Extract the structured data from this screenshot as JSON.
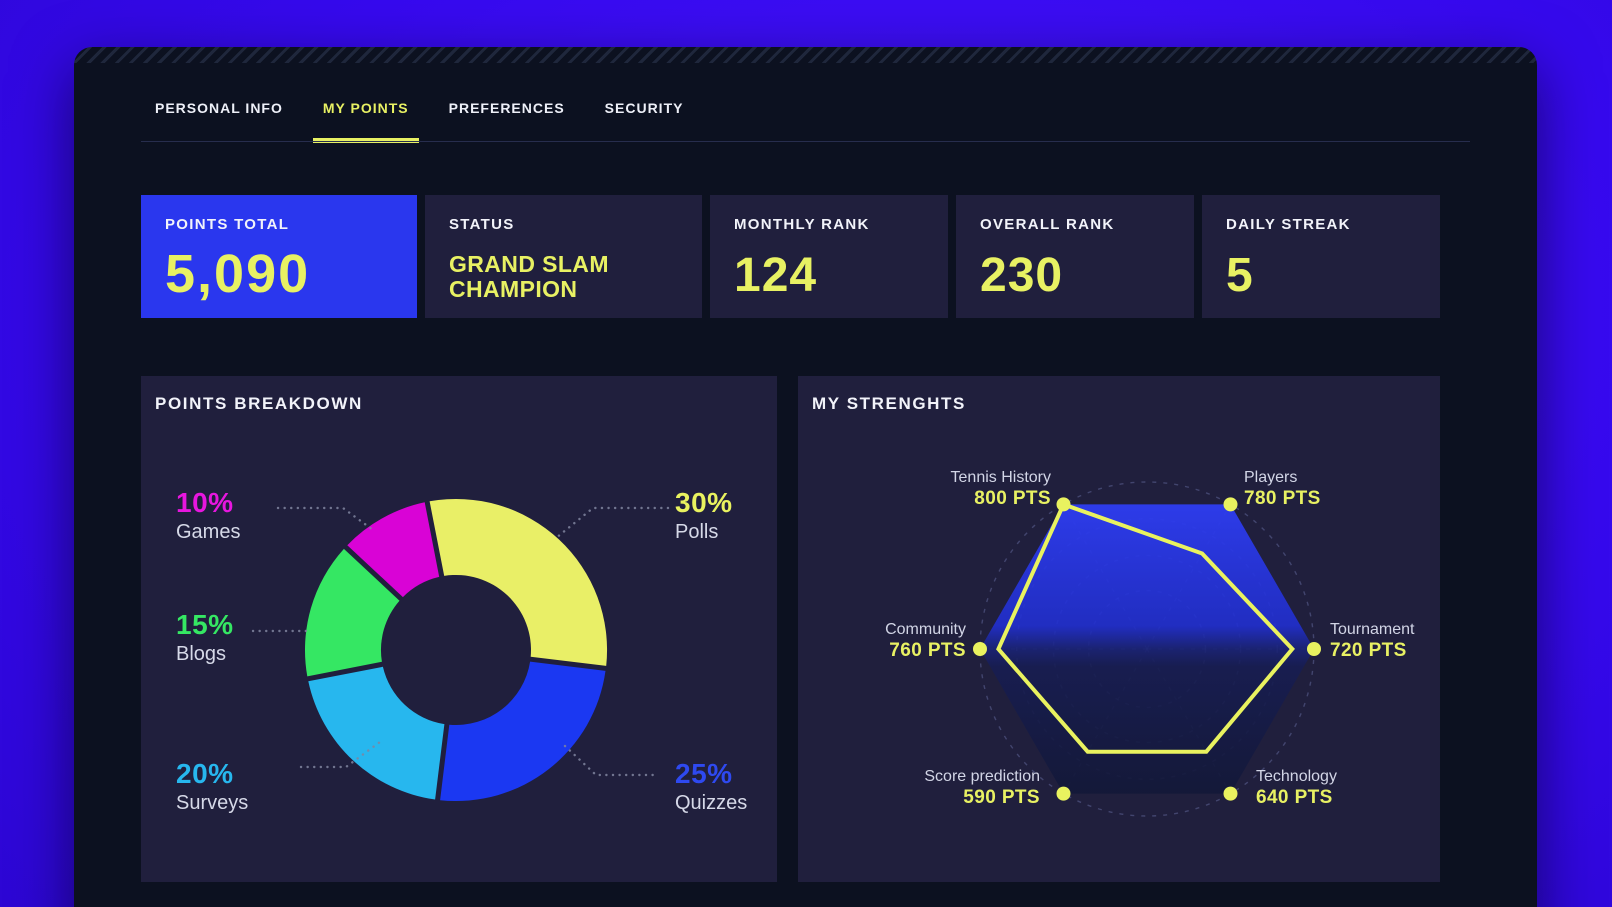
{
  "tabs": {
    "items": [
      {
        "label": "PERSONAL INFO",
        "active": false
      },
      {
        "label": "MY POINTS",
        "active": true
      },
      {
        "label": "PREFERENCES",
        "active": false
      },
      {
        "label": "SECURITY",
        "active": false
      }
    ]
  },
  "stats_cards": [
    {
      "label": "POINTS TOTAL",
      "value": "5,090",
      "highlighted": true
    },
    {
      "label": "STATUS",
      "value": "GRAND SLAM CHAMPION",
      "highlighted": false
    },
    {
      "label": "MONTHLY RANK",
      "value": "124",
      "highlighted": false
    },
    {
      "label": "OVERALL RANK",
      "value": "230",
      "highlighted": false
    },
    {
      "label": "DAILY STREAK",
      "value": "5",
      "highlighted": false
    }
  ],
  "panels": {
    "breakdown_title": "POINTS BREAKDOWN",
    "strengths_title": "MY STRENGHTS"
  },
  "chart_data": [
    {
      "type": "pie",
      "variant": "donut",
      "title": "POINTS BREAKDOWN",
      "categories": [
        "Polls",
        "Quizzes",
        "Surveys",
        "Blogs",
        "Games"
      ],
      "values": [
        30,
        25,
        20,
        15,
        10
      ],
      "unit": "%",
      "slice_colors": [
        "#e9ef67",
        "#1b38f2",
        "#27b7ee",
        "#35e763",
        "#d903d6"
      ],
      "start_angle_deg": -11,
      "direction": "clockwise",
      "legend_position": "callout-labels",
      "labels": [
        {
          "pct": "10%",
          "name": "Games",
          "color": "#e716df"
        },
        {
          "pct": "15%",
          "name": "Blogs",
          "color": "#35e763"
        },
        {
          "pct": "20%",
          "name": "Surveys",
          "color": "#27b7ee"
        },
        {
          "pct": "30%",
          "name": "Polls",
          "color": "#e9f25f"
        },
        {
          "pct": "25%",
          "name": "Quizzes",
          "color": "#2e49f0"
        }
      ]
    },
    {
      "type": "radar",
      "title": "MY STRENGHTS",
      "categories": [
        "Tennis History",
        "Players",
        "Tournament",
        "Technology",
        "Score prediction",
        "Community"
      ],
      "values": [
        800,
        780,
        720,
        640,
        590,
        760
      ],
      "unit": "PTS",
      "value_labels": [
        "800 PTS",
        "780 PTS",
        "720 PTS",
        "640 PTS",
        "590 PTS",
        "760 PTS"
      ],
      "axis_max": 800,
      "grid": {
        "rings": 4,
        "style": "dashed-circles-and-spokes"
      },
      "display_radius_ratios": [
        1.0,
        0.66,
        0.87,
        0.71,
        0.71,
        0.89
      ],
      "line_color": "#e9f25f",
      "marker_color": "#e9f25f",
      "fill_gradient": [
        "#2e3df2",
        "#131838"
      ]
    }
  ],
  "colors": {
    "page_bg": "#3a0cf2",
    "window_bg": "#0c1120",
    "card_bg": "#201f3d",
    "highlight_card_bg": "#2a37ee",
    "accent_yellow": "#e8f163",
    "text_primary": "#eef0f8",
    "text_secondary": "#d6d9e8",
    "divider": "#272d4d",
    "leader_dots": "#80859f",
    "radar_grid": "#7b84c0"
  }
}
